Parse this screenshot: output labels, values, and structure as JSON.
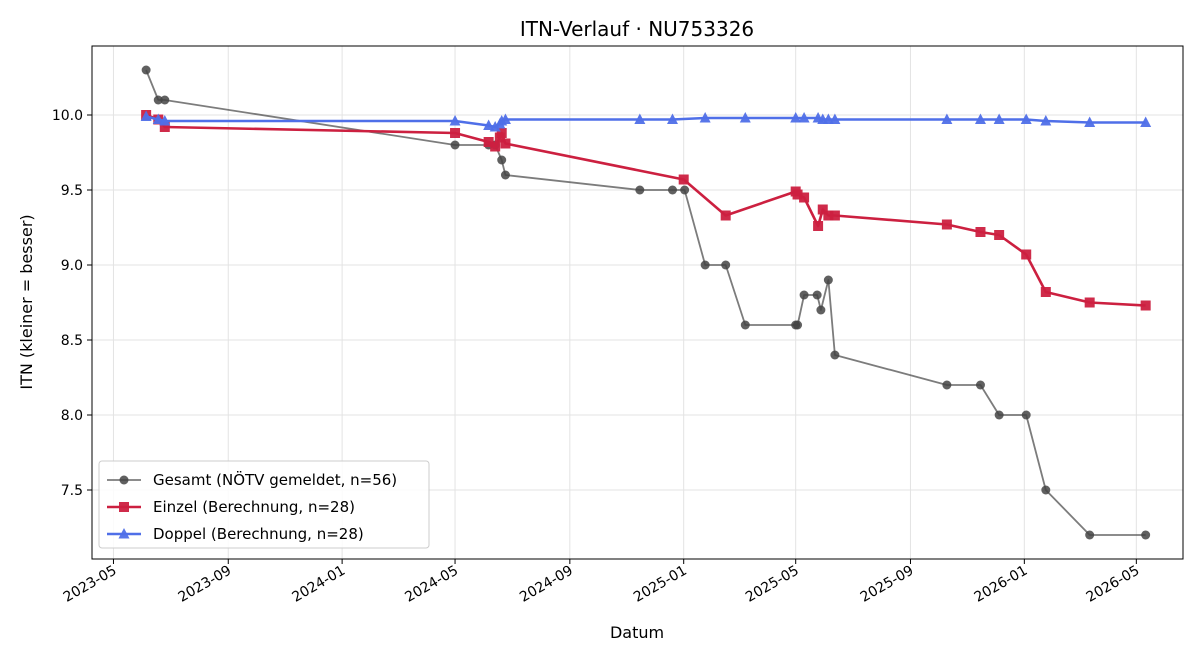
{
  "chart_data": {
    "type": "line",
    "title": "ITN-Verlauf · NU753326",
    "xlabel": "Datum",
    "ylabel": "ITN  (kleiner = besser)",
    "xlim": [
      "2023-04-08",
      "2026-06-20"
    ],
    "ylim": [
      7.04,
      10.46
    ],
    "grid": true,
    "legend_position": "lower-left",
    "x_ticks": [
      "2023-05",
      "2023-09",
      "2024-01",
      "2024-05",
      "2024-09",
      "2025-01",
      "2025-05",
      "2025-09",
      "2026-01",
      "2026-05"
    ],
    "y_ticks": [
      7.5,
      8.0,
      8.5,
      9.0,
      9.5,
      10.0
    ],
    "series": [
      {
        "name": "Gesamt (NÖTV gemeldet, n=56)",
        "color": "#444444",
        "marker": "circle",
        "points": [
          [
            "2023-06-05",
            10.3
          ],
          [
            "2023-06-18",
            10.1
          ],
          [
            "2023-06-25",
            10.1
          ],
          [
            "2024-05-01",
            9.8
          ],
          [
            "2024-06-06",
            9.8
          ],
          [
            "2024-06-13",
            9.8
          ],
          [
            "2024-06-20",
            9.7
          ],
          [
            "2024-06-24",
            9.6
          ],
          [
            "2024-11-15",
            9.5
          ],
          [
            "2024-12-20",
            9.5
          ],
          [
            "2025-01-02",
            9.5
          ],
          [
            "2025-01-24",
            9.0
          ],
          [
            "2025-02-15",
            9.0
          ],
          [
            "2025-03-08",
            8.6
          ],
          [
            "2025-05-01",
            8.6
          ],
          [
            "2025-05-03",
            8.6
          ],
          [
            "2025-05-10",
            8.8
          ],
          [
            "2025-05-24",
            8.8
          ],
          [
            "2025-05-28",
            8.7
          ],
          [
            "2025-06-05",
            8.9
          ],
          [
            "2025-06-12",
            8.4
          ],
          [
            "2025-10-10",
            8.2
          ],
          [
            "2025-11-15",
            8.2
          ],
          [
            "2025-12-05",
            8.0
          ],
          [
            "2026-01-03",
            8.0
          ],
          [
            "2026-01-24",
            7.5
          ],
          [
            "2026-03-12",
            7.2
          ],
          [
            "2026-05-11",
            7.2
          ]
        ]
      },
      {
        "name": "Einzel (Berechnung, n=28)",
        "color": "#cc2040",
        "marker": "square",
        "points": [
          [
            "2023-06-05",
            10.0
          ],
          [
            "2023-06-18",
            9.97
          ],
          [
            "2023-06-25",
            9.92
          ],
          [
            "2024-05-01",
            9.88
          ],
          [
            "2024-06-06",
            9.82
          ],
          [
            "2024-06-13",
            9.79
          ],
          [
            "2024-06-18",
            9.85
          ],
          [
            "2024-06-20",
            9.88
          ],
          [
            "2024-06-24",
            9.81
          ],
          [
            "2025-01-01",
            9.57
          ],
          [
            "2025-02-15",
            9.33
          ],
          [
            "2025-05-01",
            9.49
          ],
          [
            "2025-05-03",
            9.47
          ],
          [
            "2025-05-10",
            9.45
          ],
          [
            "2025-05-25",
            9.26
          ],
          [
            "2025-05-30",
            9.37
          ],
          [
            "2025-06-05",
            9.33
          ],
          [
            "2025-06-12",
            9.33
          ],
          [
            "2025-10-10",
            9.27
          ],
          [
            "2025-11-15",
            9.22
          ],
          [
            "2025-12-05",
            9.2
          ],
          [
            "2026-01-03",
            9.07
          ],
          [
            "2026-01-24",
            8.82
          ],
          [
            "2026-03-12",
            8.75
          ],
          [
            "2026-05-11",
            8.73
          ]
        ]
      },
      {
        "name": "Doppel (Berechnung, n=28)",
        "color": "#4f6fe8",
        "marker": "triangle",
        "points": [
          [
            "2023-06-05",
            9.99
          ],
          [
            "2023-06-18",
            9.97
          ],
          [
            "2023-06-25",
            9.96
          ],
          [
            "2024-05-01",
            9.96
          ],
          [
            "2024-06-06",
            9.93
          ],
          [
            "2024-06-13",
            9.92
          ],
          [
            "2024-06-18",
            9.94
          ],
          [
            "2024-06-20",
            9.96
          ],
          [
            "2024-06-24",
            9.97
          ],
          [
            "2024-11-15",
            9.97
          ],
          [
            "2024-12-20",
            9.97
          ],
          [
            "2025-01-24",
            9.98
          ],
          [
            "2025-03-08",
            9.98
          ],
          [
            "2025-05-01",
            9.98
          ],
          [
            "2025-05-10",
            9.98
          ],
          [
            "2025-05-25",
            9.98
          ],
          [
            "2025-05-30",
            9.97
          ],
          [
            "2025-06-05",
            9.97
          ],
          [
            "2025-06-12",
            9.97
          ],
          [
            "2025-10-10",
            9.97
          ],
          [
            "2025-11-15",
            9.97
          ],
          [
            "2025-12-05",
            9.97
          ],
          [
            "2026-01-03",
            9.97
          ],
          [
            "2026-01-24",
            9.96
          ],
          [
            "2026-03-12",
            9.95
          ],
          [
            "2026-05-11",
            9.95
          ]
        ]
      }
    ]
  }
}
